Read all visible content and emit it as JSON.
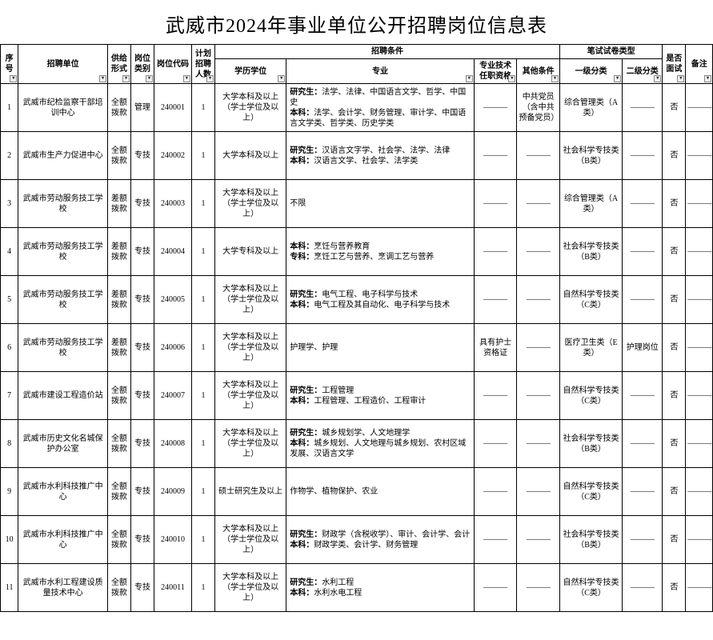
{
  "title": "武威市2024年事业单位公开招聘岗位信息表",
  "headers": {
    "seq": "序号",
    "unit": "招聘单位",
    "supply": "供给形式",
    "category": "岗位类别",
    "code": "岗位代码",
    "plan": "计划招聘人数",
    "cond_group": "招聘条件",
    "edu": "学历学位",
    "major": "专业",
    "tech": "专业技术任职资格",
    "other": "其他条件",
    "exam_group": "笔试试卷类型",
    "exam1": "一级分类",
    "exam2": "二级分类",
    "interview": "是否面试",
    "note": "备注"
  },
  "dash": "———",
  "rows": [
    {
      "seq": "1",
      "unit": "武威市纪检监察干部培训中心",
      "supply": "全额拨款",
      "category": "管理",
      "code": "240001",
      "plan": "1",
      "edu": "大学本科及以上（学士学位及以上）",
      "major": "研究生：法学、法律、中国语言文学、哲学、中国史\n本科：法学、会计学、财务管理、审计学、中国语言文学类、哲学类、历史学类",
      "tech": "———",
      "other": "中共党员（含中共预备党员）",
      "exam1": "综合管理类（A类）",
      "exam2": "———",
      "interview": "否",
      "note": "———"
    },
    {
      "seq": "2",
      "unit": "武威市生产力促进中心",
      "supply": "全额拨款",
      "category": "专技",
      "code": "240002",
      "plan": "1",
      "edu": "大学本科及以上",
      "major": "研究生：汉语言文字学、社会学、法学、法律\n本科：汉语言文学、社会学、法学类",
      "tech": "———",
      "other": "———",
      "exam1": "社会科学专技类（B类）",
      "exam2": "———",
      "interview": "否",
      "note": "———"
    },
    {
      "seq": "3",
      "unit": "武威市劳动服务技工学校",
      "supply": "差额拨款",
      "category": "专技",
      "code": "240003",
      "plan": "1",
      "edu": "大学本科及以上（学士学位及以上）",
      "major": "不限",
      "tech": "———",
      "other": "———",
      "exam1": "综合管理类（A类）",
      "exam2": "———",
      "interview": "否",
      "note": "———"
    },
    {
      "seq": "4",
      "unit": "武威市劳动服务技工学校",
      "supply": "差额拨款",
      "category": "专技",
      "code": "240004",
      "plan": "1",
      "edu": "大学专科及以上",
      "major": "本科：烹饪与营养教育\n专科：烹饪工艺与营养、烹调工艺与营养",
      "tech": "———",
      "other": "———",
      "exam1": "社会科学专技类（B类）",
      "exam2": "———",
      "interview": "否",
      "note": "———"
    },
    {
      "seq": "5",
      "unit": "武威市劳动服务技工学校",
      "supply": "差额拨款",
      "category": "专技",
      "code": "240005",
      "plan": "1",
      "edu": "大学本科及以上（学士学位及以上）",
      "major": "研究生：电气工程、电子科学与技术\n本科：电气工程及其自动化、电子科学与技术",
      "tech": "———",
      "other": "———",
      "exam1": "自然科学专技类（C类）",
      "exam2": "———",
      "interview": "否",
      "note": "———"
    },
    {
      "seq": "6",
      "unit": "武威市劳动服务技工学校",
      "supply": "差额拨款",
      "category": "专技",
      "code": "240006",
      "plan": "1",
      "edu": "大学本科及以上（学士学位及以上）",
      "major": "护理学、护理",
      "tech": "具有护士资格证",
      "other": "———",
      "exam1": "医疗卫生类（E类）",
      "exam2": "护理岗位",
      "interview": "否",
      "note": "———"
    },
    {
      "seq": "7",
      "unit": "武威市建设工程造价站",
      "supply": "全额拨款",
      "category": "专技",
      "code": "240007",
      "plan": "1",
      "edu": "大学本科及以上（学士学位及以上）",
      "major": "研究生：工程管理\n本科：工程管理、工程造价、工程审计",
      "tech": "———",
      "other": "———",
      "exam1": "自然科学专技类（C类）",
      "exam2": "———",
      "interview": "否",
      "note": "———"
    },
    {
      "seq": "8",
      "unit": "武威市历史文化名城保护办公室",
      "supply": "全额拨款",
      "category": "专技",
      "code": "240008",
      "plan": "1",
      "edu": "大学本科及以上（学士学位及以上）",
      "major": "研究生：城乡规划学、人文地理学\n本科：城乡规划、人文地理与城乡规划、农村区域发展、汉语言文学",
      "tech": "———",
      "other": "———",
      "exam1": "社会科学专技类（B类）",
      "exam2": "———",
      "interview": "否",
      "note": "———"
    },
    {
      "seq": "9",
      "unit": "武威市水利科技推广中心",
      "supply": "全额拨款",
      "category": "专技",
      "code": "240009",
      "plan": "1",
      "edu": "硕士研究生及以上",
      "major": "作物学、植物保护、农业",
      "tech": "———",
      "other": "———",
      "exam1": "自然科学专技类（C类）",
      "exam2": "———",
      "interview": "否",
      "note": "———"
    },
    {
      "seq": "10",
      "unit": "武威市水利科技推广中心",
      "supply": "全额拨款",
      "category": "专技",
      "code": "240010",
      "plan": "1",
      "edu": "大学本科及以上（学士学位及以上）",
      "major": "研究生：财政学（含税收学）、审计、会计学、会计\n本科：财政学类、会计学、财务管理",
      "tech": "———",
      "other": "———",
      "exam1": "社会科学专技类（B类）",
      "exam2": "———",
      "interview": "否",
      "note": "———"
    },
    {
      "seq": "11",
      "unit": "武威市水利工程建设质量技术中心",
      "supply": "全额拨款",
      "category": "专技",
      "code": "240011",
      "plan": "1",
      "edu": "大学本科及以上（学士学位及以上）",
      "major": "研究生：水利工程\n本科：水利水电工程",
      "tech": "———",
      "other": "———",
      "exam1": "自然科学专技类（C类）",
      "exam2": "———",
      "interview": "否",
      "note": "———"
    }
  ]
}
